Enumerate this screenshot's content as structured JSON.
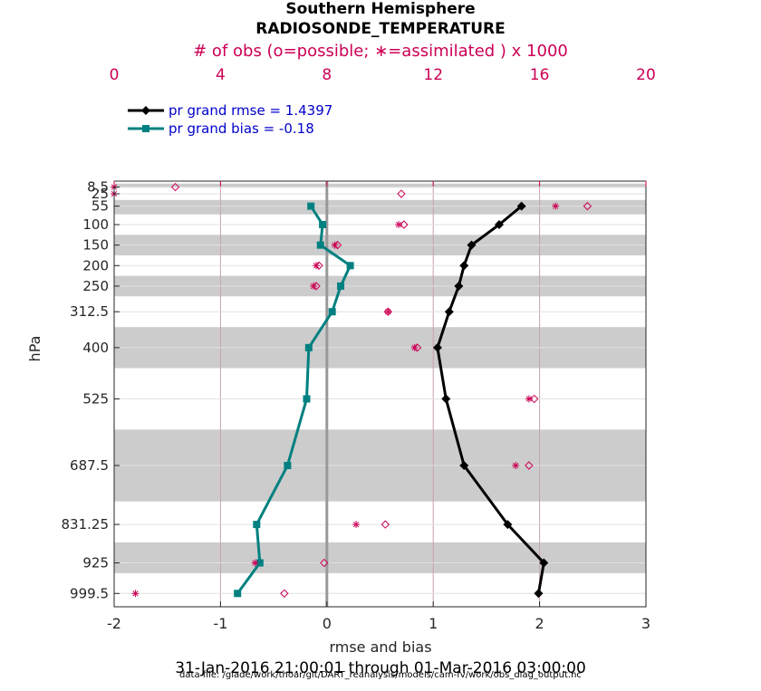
{
  "chart_data": {
    "type": "line",
    "title": "Southern Hemisphere",
    "subtitle": "RADIOSONDE_TEMPERATURE",
    "xlabel": "rmse and bias",
    "ylabel": "hPa",
    "top_axis_label": "# of obs (o=possible; ∗=assimilated ) x 1000",
    "xlim": [
      -2,
      3
    ],
    "xticks": [
      "-2",
      "-1",
      "0",
      "1",
      "2",
      "3"
    ],
    "top_xlim": [
      0,
      20
    ],
    "top_xticks": [
      "0",
      "4",
      "8",
      "12",
      "16",
      "20"
    ],
    "y_levels": [
      "8.5",
      "25",
      "55",
      "100",
      "150",
      "200",
      "250",
      "312.5",
      "400",
      "525",
      "687.5",
      "831.25",
      "925",
      "999.5"
    ],
    "bands": [
      {
        "from": 0,
        "to": 10
      },
      {
        "from": 40,
        "to": 75
      },
      {
        "from": 125,
        "to": 175
      },
      {
        "from": 225,
        "to": 275
      },
      {
        "from": 350,
        "to": 450
      },
      {
        "from": 600,
        "to": 775
      },
      {
        "from": 875,
        "to": 950
      }
    ],
    "series": [
      {
        "name": "pr grand rmse = 1.4397",
        "color": "#000000",
        "marker": "diamond",
        "levels": [
          "55",
          "100",
          "150",
          "200",
          "250",
          "312.5",
          "400",
          "525",
          "687.5",
          "831.25",
          "925",
          "999.5"
        ],
        "values": [
          1.83,
          1.62,
          1.36,
          1.29,
          1.24,
          1.15,
          1.04,
          1.12,
          1.29,
          1.7,
          2.04,
          1.99
        ]
      },
      {
        "name": "pr grand bias = -0.18",
        "color": "#008080",
        "marker": "square",
        "levels": [
          "55",
          "100",
          "150",
          "200",
          "250",
          "312.5",
          "400",
          "525",
          "687.5",
          "831.25",
          "925",
          "999.5"
        ],
        "values": [
          -0.15,
          -0.04,
          -0.06,
          0.22,
          0.13,
          0.05,
          -0.17,
          -0.19,
          -0.37,
          -0.66,
          -0.63,
          -0.84
        ]
      }
    ],
    "obs_possible": {
      "color": "#cc0055",
      "levels": [
        "8.5",
        "25",
        "55",
        "100",
        "150",
        "200",
        "250",
        "312.5",
        "400",
        "525",
        "687.5",
        "831.25",
        "925",
        "999.5"
      ],
      "values": [
        2.3,
        10.8,
        17.8,
        10.9,
        8.4,
        7.7,
        7.6,
        10.3,
        11.4,
        15.8,
        15.6,
        10.2,
        7.9,
        6.4
      ]
    },
    "obs_assimilated": {
      "color": "#cc0055",
      "levels": [
        "8.5",
        "25",
        "55",
        "100",
        "150",
        "200",
        "250",
        "312.5",
        "400",
        "525",
        "687.5",
        "831.25",
        "925",
        "999.5"
      ],
      "values": [
        0.0,
        0.0,
        16.6,
        10.7,
        8.3,
        7.6,
        7.5,
        10.3,
        11.3,
        15.6,
        15.1,
        9.1,
        5.3,
        0.8
      ]
    },
    "date_range": "31-Jan-2016 21:00:01 through 01-Mar-2016 03:00:00",
    "data_file": "data file: /glade/work/thoar/git/DART_reanalysis/models/cam-fv/work/obs_diag_output.nc"
  }
}
